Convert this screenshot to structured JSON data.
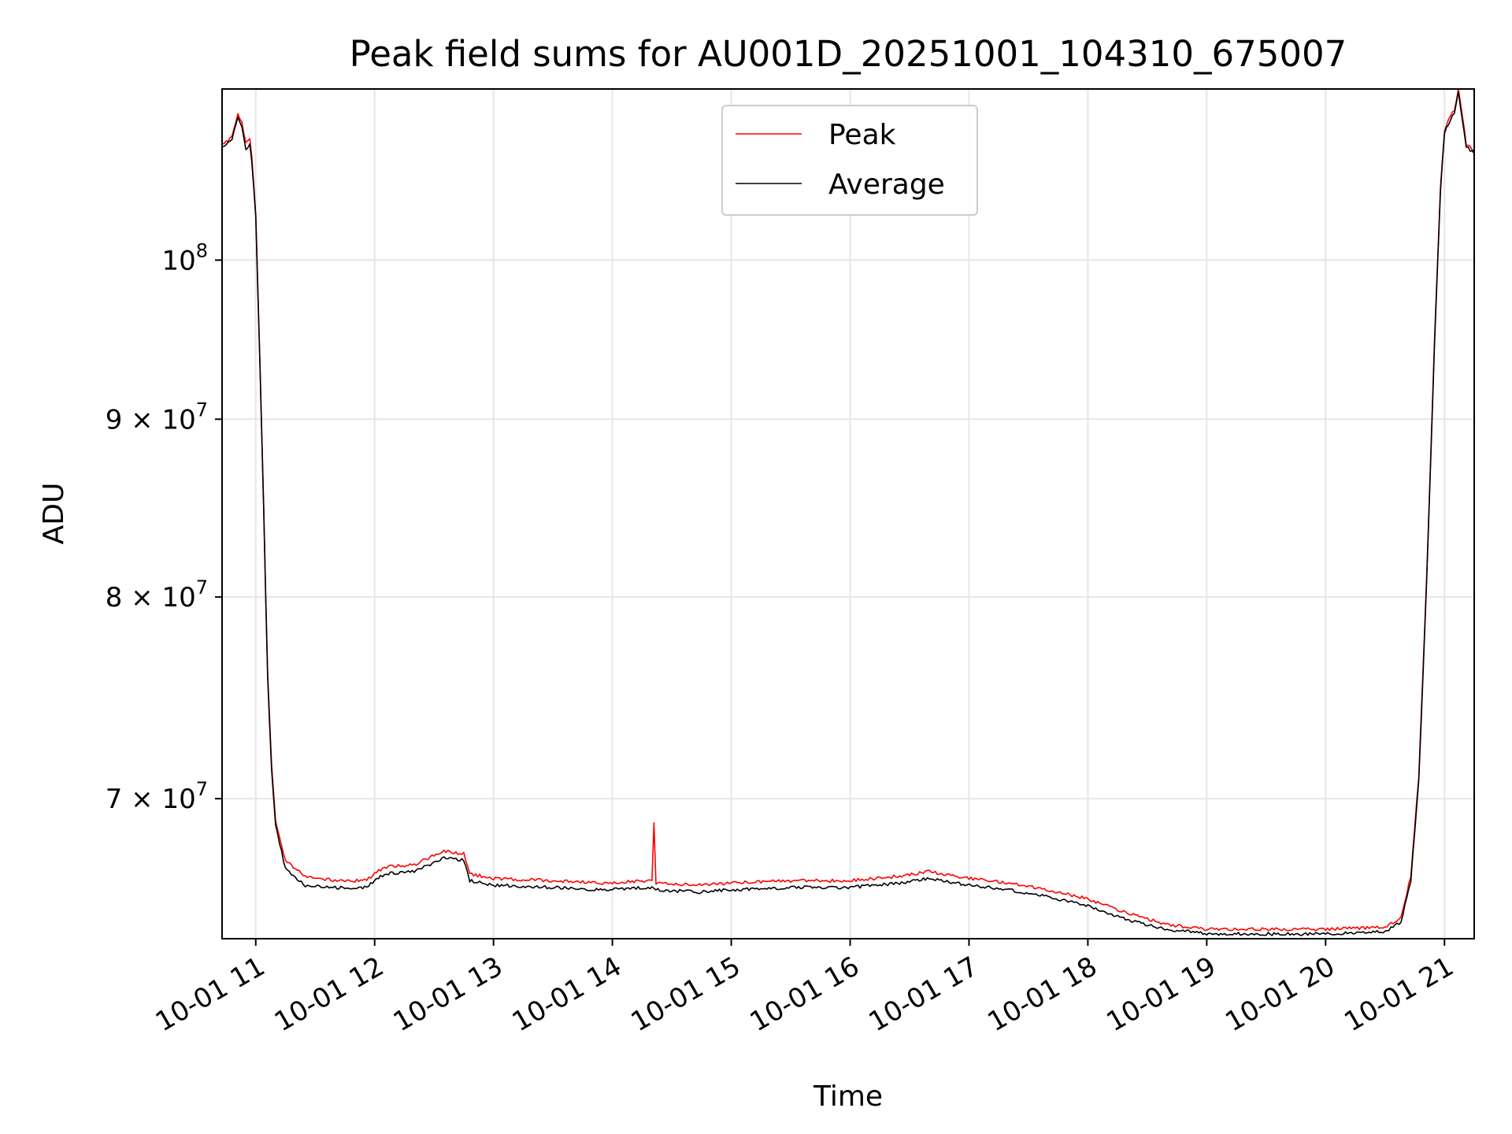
{
  "chart_data": {
    "type": "line",
    "title": "Peak field sums for AU001D_20251001_104310_675007",
    "xlabel": "Time",
    "ylabel": "ADU",
    "y_scale": "log",
    "ylim": [
      63800000,
      112000000
    ],
    "xlim": [
      "10-01 10:43",
      "10-01 21:15"
    ],
    "grid": true,
    "legend_position": "top-center",
    "x_ticks": [
      {
        "value": "10-01 11:00",
        "label": "10-01 11"
      },
      {
        "value": "10-01 12:00",
        "label": "10-01 12"
      },
      {
        "value": "10-01 13:00",
        "label": "10-01 13"
      },
      {
        "value": "10-01 14:00",
        "label": "10-01 14"
      },
      {
        "value": "10-01 15:00",
        "label": "10-01 15"
      },
      {
        "value": "10-01 16:00",
        "label": "10-01 16"
      },
      {
        "value": "10-01 17:00",
        "label": "10-01 17"
      },
      {
        "value": "10-01 18:00",
        "label": "10-01 18"
      },
      {
        "value": "10-01 19:00",
        "label": "10-01 19"
      },
      {
        "value": "10-01 20:00",
        "label": "10-01 20"
      },
      {
        "value": "10-01 21:00",
        "label": "10-01 21"
      }
    ],
    "y_ticks": [
      {
        "value": 100000000,
        "base": "10",
        "exp": "8"
      },
      {
        "value": 90000000,
        "base": "9 × 10",
        "exp": "7"
      },
      {
        "value": 80000000,
        "base": "8 × 10",
        "exp": "7"
      },
      {
        "value": 70000000,
        "base": "7 × 10",
        "exp": "7"
      }
    ],
    "series": [
      {
        "name": "Peak",
        "color": "#ff0000",
        "points": [
          [
            "10-01 10:43",
            108000000
          ],
          [
            "10-01 10:48",
            108500000
          ],
          [
            "10-01 10:51",
            110200000
          ],
          [
            "10-01 10:53",
            109500000
          ],
          [
            "10-01 10:55",
            108000000
          ],
          [
            "10-01 10:57",
            108300000
          ],
          [
            "10-01 10:58",
            107000000
          ],
          [
            "10-01 11:00",
            103000000
          ],
          [
            "10-01 11:02",
            94000000
          ],
          [
            "10-01 11:04",
            85000000
          ],
          [
            "10-01 11:06",
            76000000
          ],
          [
            "10-01 11:08",
            71500000
          ],
          [
            "10-01 11:10",
            69000000
          ],
          [
            "10-01 11:15",
            67200000
          ],
          [
            "10-01 11:25",
            66500000
          ],
          [
            "10-01 11:40",
            66300000
          ],
          [
            "10-01 11:55",
            66300000
          ],
          [
            "10-01 12:05",
            66900000
          ],
          [
            "10-01 12:20",
            67000000
          ],
          [
            "10-01 12:35",
            67600000
          ],
          [
            "10-01 12:45",
            67500000
          ],
          [
            "10-01 12:48",
            66600000
          ],
          [
            "10-01 13:00",
            66400000
          ],
          [
            "10-01 13:30",
            66300000
          ],
          [
            "10-01 13:55",
            66200000
          ],
          [
            "10-01 14:20",
            66300000
          ],
          [
            "10-01 14:21",
            68900000
          ],
          [
            "10-01 14:22",
            66200000
          ],
          [
            "10-01 14:45",
            66100000
          ],
          [
            "10-01 15:00",
            66200000
          ],
          [
            "10-01 15:30",
            66300000
          ],
          [
            "10-01 16:00",
            66300000
          ],
          [
            "10-01 16:25",
            66500000
          ],
          [
            "10-01 16:40",
            66700000
          ],
          [
            "10-01 17:00",
            66400000
          ],
          [
            "10-01 17:20",
            66200000
          ],
          [
            "10-01 17:40",
            65900000
          ],
          [
            "10-01 18:00",
            65500000
          ],
          [
            "10-01 18:20",
            64900000
          ],
          [
            "10-01 18:40",
            64400000
          ],
          [
            "10-01 19:00",
            64200000
          ],
          [
            "10-01 19:30",
            64200000
          ],
          [
            "10-01 20:00",
            64200000
          ],
          [
            "10-01 20:30",
            64300000
          ],
          [
            "10-01 20:38",
            64700000
          ],
          [
            "10-01 20:43",
            66500000
          ],
          [
            "10-01 20:47",
            71000000
          ],
          [
            "10-01 20:51",
            81000000
          ],
          [
            "10-01 20:55",
            95000000
          ],
          [
            "10-01 20:58",
            105000000
          ],
          [
            "10-01 21:00",
            109000000
          ],
          [
            "10-01 21:03",
            110000000
          ],
          [
            "10-01 21:05",
            110500000
          ],
          [
            "10-01 21:07",
            112000000
          ],
          [
            "10-01 21:09",
            110000000
          ],
          [
            "10-01 21:11",
            108000000
          ],
          [
            "10-01 21:15",
            107500000
          ]
        ]
      },
      {
        "name": "Average",
        "color": "#000000",
        "points": [
          [
            "10-01 10:43",
            107800000
          ],
          [
            "10-01 10:48",
            108300000
          ],
          [
            "10-01 10:51",
            110000000
          ],
          [
            "10-01 10:53",
            109300000
          ],
          [
            "10-01 10:55",
            107600000
          ],
          [
            "10-01 10:57",
            108000000
          ],
          [
            "10-01 10:58",
            106800000
          ],
          [
            "10-01 11:00",
            102800000
          ],
          [
            "10-01 11:02",
            93800000
          ],
          [
            "10-01 11:04",
            84800000
          ],
          [
            "10-01 11:06",
            75800000
          ],
          [
            "10-01 11:08",
            71300000
          ],
          [
            "10-01 11:10",
            68800000
          ],
          [
            "10-01 11:15",
            66800000
          ],
          [
            "10-01 11:25",
            66100000
          ],
          [
            "10-01 11:40",
            66000000
          ],
          [
            "10-01 11:55",
            66000000
          ],
          [
            "10-01 12:05",
            66600000
          ],
          [
            "10-01 12:20",
            66700000
          ],
          [
            "10-01 12:35",
            67300000
          ],
          [
            "10-01 12:45",
            67200000
          ],
          [
            "10-01 12:48",
            66300000
          ],
          [
            "10-01 13:00",
            66100000
          ],
          [
            "10-01 13:30",
            66000000
          ],
          [
            "10-01 13:55",
            65900000
          ],
          [
            "10-01 14:20",
            66000000
          ],
          [
            "10-01 14:22",
            65900000
          ],
          [
            "10-01 14:45",
            65800000
          ],
          [
            "10-01 15:00",
            65900000
          ],
          [
            "10-01 15:30",
            66000000
          ],
          [
            "10-01 16:00",
            66000000
          ],
          [
            "10-01 16:25",
            66200000
          ],
          [
            "10-01 16:40",
            66400000
          ],
          [
            "10-01 17:00",
            66100000
          ],
          [
            "10-01 17:20",
            65900000
          ],
          [
            "10-01 17:40",
            65600000
          ],
          [
            "10-01 18:00",
            65200000
          ],
          [
            "10-01 18:20",
            64600000
          ],
          [
            "10-01 18:40",
            64200000
          ],
          [
            "10-01 19:00",
            64000000
          ],
          [
            "10-01 19:30",
            64000000
          ],
          [
            "10-01 20:00",
            64000000
          ],
          [
            "10-01 20:30",
            64100000
          ],
          [
            "10-01 20:38",
            64500000
          ],
          [
            "10-01 20:43",
            66300000
          ],
          [
            "10-01 20:47",
            70800000
          ],
          [
            "10-01 20:51",
            80800000
          ],
          [
            "10-01 20:55",
            94800000
          ],
          [
            "10-01 20:58",
            104800000
          ],
          [
            "10-01 21:00",
            108800000
          ],
          [
            "10-01 21:03",
            109800000
          ],
          [
            "10-01 21:05",
            110300000
          ],
          [
            "10-01 21:07",
            111800000
          ],
          [
            "10-01 21:09",
            109800000
          ],
          [
            "10-01 21:11",
            107800000
          ],
          [
            "10-01 21:15",
            107300000
          ]
        ]
      }
    ]
  }
}
